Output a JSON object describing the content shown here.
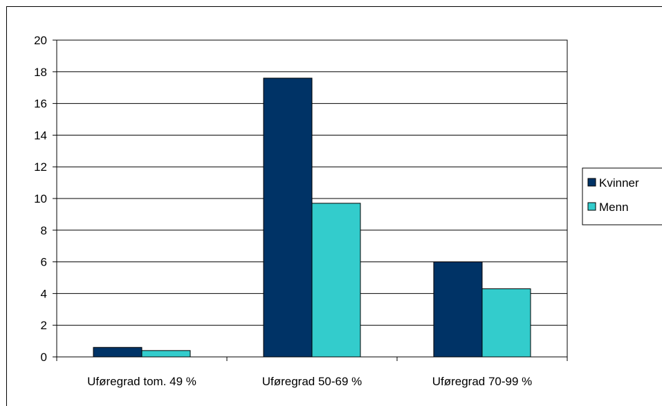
{
  "chart_data": {
    "type": "bar",
    "categories": [
      "Uføregrad tom. 49 %",
      "Uføregrad 50-69 %",
      "Uføregrad 70-99 %"
    ],
    "series": [
      {
        "name": "Kvinner",
        "values": [
          0.6,
          17.6,
          6.0
        ],
        "color": "#003366"
      },
      {
        "name": "Menn",
        "values": [
          0.4,
          9.7,
          4.3
        ],
        "color": "#33CCCC"
      }
    ],
    "ylim": [
      0,
      20
    ],
    "yticks": [
      0,
      2,
      4,
      6,
      8,
      10,
      12,
      14,
      16,
      18,
      20
    ],
    "grid": true,
    "legend_position": "right"
  }
}
